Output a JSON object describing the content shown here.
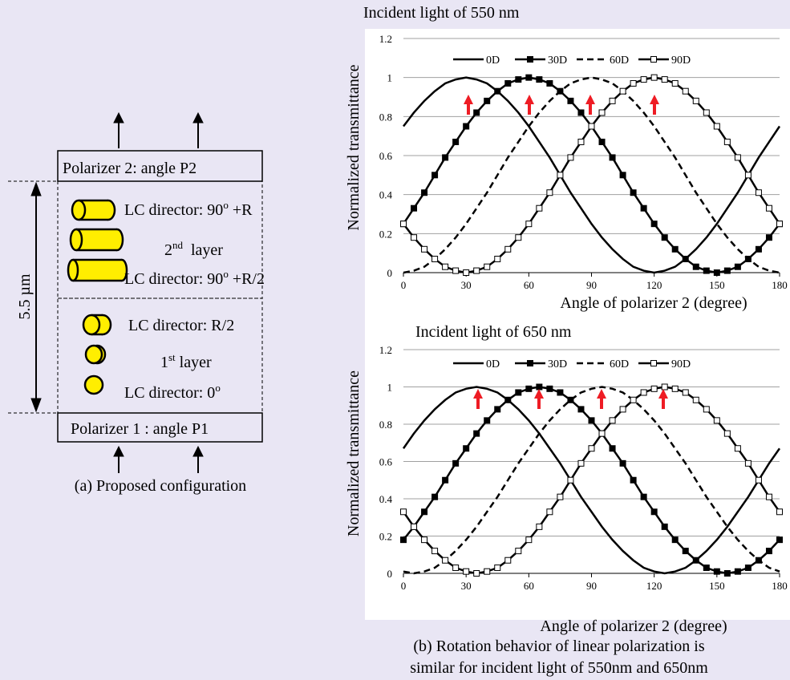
{
  "diagram": {
    "polarizer_top": "Polarizer 2: angle P2",
    "polarizer_bottom": "Polarizer 1 : angle P1",
    "thickness": "5.5 µm",
    "layer2": {
      "top": [
        "LC director: 90",
        "o",
        " +R"
      ],
      "name": [
        "2",
        "nd",
        "  layer"
      ],
      "bottom": [
        "LC director: 90",
        "o",
        " +R/2"
      ]
    },
    "layer1": {
      "top": [
        "LC director: R/2"
      ],
      "name": [
        "1",
        "st",
        " layer"
      ],
      "bottom": [
        "LC director: 0",
        "o"
      ]
    },
    "caption": "(a) Proposed configuration"
  },
  "chart_data": [
    {
      "type": "line",
      "title": "Incident light of 550 nm",
      "x_label": "Angle of polarizer 2 (degree)",
      "y_label": "Normalized transmittance",
      "x": [
        0,
        5,
        10,
        15,
        20,
        25,
        30,
        35,
        40,
        45,
        50,
        55,
        60,
        65,
        70,
        75,
        80,
        85,
        90,
        95,
        100,
        105,
        110,
        115,
        120,
        125,
        130,
        135,
        140,
        145,
        150,
        155,
        160,
        165,
        170,
        175,
        180
      ],
      "xlim": [
        0,
        180
      ],
      "xticks": [
        0,
        30,
        60,
        90,
        120,
        150,
        180
      ],
      "ylim": [
        0,
        1.2
      ],
      "yticks": [
        0,
        0.2,
        0.4,
        0.6,
        0.8,
        1,
        1.2
      ],
      "grid": true,
      "legend": "top",
      "series": [
        {
          "name": "0D",
          "color": "#000000",
          "line_style": "solid",
          "marker": "none",
          "values": [
            0.75,
            0.82,
            0.88,
            0.93,
            0.97,
            0.99,
            1,
            0.99,
            0.97,
            0.93,
            0.88,
            0.82,
            0.75,
            0.67,
            0.59,
            0.5,
            0.41,
            0.33,
            0.25,
            0.18,
            0.12,
            0.07,
            0.03,
            0.01,
            0,
            0.01,
            0.03,
            0.07,
            0.12,
            0.18,
            0.25,
            0.33,
            0.41,
            0.5,
            0.59,
            0.67,
            0.75
          ]
        },
        {
          "name": "30D",
          "color": "#000000",
          "line_style": "solid",
          "marker": "filled-square",
          "values": [
            0.25,
            0.33,
            0.41,
            0.5,
            0.59,
            0.67,
            0.75,
            0.82,
            0.88,
            0.93,
            0.97,
            0.99,
            1,
            0.99,
            0.97,
            0.93,
            0.88,
            0.82,
            0.75,
            0.67,
            0.59,
            0.5,
            0.41,
            0.33,
            0.25,
            0.18,
            0.12,
            0.07,
            0.03,
            0.01,
            0,
            0.01,
            0.03,
            0.07,
            0.12,
            0.18,
            0.25
          ]
        },
        {
          "name": "60D",
          "color": "#000000",
          "line_style": "dashed",
          "marker": "none",
          "values": [
            0,
            0.01,
            0.03,
            0.07,
            0.12,
            0.18,
            0.25,
            0.33,
            0.41,
            0.5,
            0.59,
            0.67,
            0.75,
            0.82,
            0.88,
            0.93,
            0.97,
            0.99,
            1,
            0.99,
            0.97,
            0.93,
            0.88,
            0.82,
            0.75,
            0.67,
            0.59,
            0.5,
            0.41,
            0.33,
            0.25,
            0.18,
            0.12,
            0.07,
            0.03,
            0.01,
            0
          ]
        },
        {
          "name": "90D",
          "color": "#000000",
          "line_style": "solid",
          "marker": "open-square",
          "values": [
            0.25,
            0.18,
            0.12,
            0.07,
            0.03,
            0.01,
            0,
            0.01,
            0.03,
            0.07,
            0.12,
            0.18,
            0.25,
            0.33,
            0.41,
            0.5,
            0.59,
            0.67,
            0.75,
            0.82,
            0.88,
            0.93,
            0.97,
            0.99,
            1,
            0.99,
            0.97,
            0.93,
            0.88,
            0.82,
            0.75,
            0.67,
            0.59,
            0.5,
            0.41,
            0.33,
            0.25
          ]
        }
      ]
    },
    {
      "type": "line",
      "title": "Incident light of 650 nm",
      "x_label": "Angle of polarizer 2 (degree)",
      "y_label": "Normalized transmittance",
      "x": [
        0,
        5,
        10,
        15,
        20,
        25,
        30,
        35,
        40,
        45,
        50,
        55,
        60,
        65,
        70,
        75,
        80,
        85,
        90,
        95,
        100,
        105,
        110,
        115,
        120,
        125,
        130,
        135,
        140,
        145,
        150,
        155,
        160,
        165,
        170,
        175,
        180
      ],
      "xlim": [
        0,
        180
      ],
      "xticks": [
        0,
        30,
        60,
        90,
        120,
        150,
        180
      ],
      "ylim": [
        0,
        1.2
      ],
      "yticks": [
        0,
        0.2,
        0.4,
        0.6,
        0.8,
        1,
        1.2
      ],
      "grid": true,
      "legend": "top",
      "series": [
        {
          "name": "0D",
          "color": "#000000",
          "line_style": "solid",
          "marker": "none",
          "values": [
            0.67,
            0.75,
            0.82,
            0.88,
            0.93,
            0.97,
            0.99,
            1,
            0.99,
            0.97,
            0.93,
            0.88,
            0.82,
            0.75,
            0.67,
            0.59,
            0.5,
            0.41,
            0.33,
            0.25,
            0.18,
            0.12,
            0.07,
            0.03,
            0.01,
            0,
            0.01,
            0.03,
            0.07,
            0.12,
            0.18,
            0.25,
            0.33,
            0.41,
            0.5,
            0.59,
            0.67
          ]
        },
        {
          "name": "30D",
          "color": "#000000",
          "line_style": "solid",
          "marker": "filled-square",
          "values": [
            0.18,
            0.25,
            0.33,
            0.41,
            0.5,
            0.59,
            0.67,
            0.75,
            0.82,
            0.88,
            0.93,
            0.97,
            0.99,
            1,
            0.99,
            0.97,
            0.93,
            0.88,
            0.82,
            0.75,
            0.67,
            0.59,
            0.5,
            0.41,
            0.33,
            0.25,
            0.18,
            0.12,
            0.07,
            0.03,
            0.01,
            0,
            0.01,
            0.03,
            0.07,
            0.12,
            0.18
          ]
        },
        {
          "name": "60D",
          "color": "#000000",
          "line_style": "dashed",
          "marker": "none",
          "values": [
            0.01,
            0,
            0.01,
            0.03,
            0.07,
            0.12,
            0.18,
            0.25,
            0.33,
            0.41,
            0.5,
            0.59,
            0.67,
            0.75,
            0.82,
            0.88,
            0.93,
            0.97,
            0.99,
            1,
            0.99,
            0.97,
            0.93,
            0.88,
            0.82,
            0.75,
            0.67,
            0.59,
            0.5,
            0.41,
            0.33,
            0.25,
            0.18,
            0.12,
            0.07,
            0.03,
            0.01
          ]
        },
        {
          "name": "90D",
          "color": "#000000",
          "line_style": "solid",
          "marker": "open-square",
          "values": [
            0.33,
            0.25,
            0.18,
            0.12,
            0.07,
            0.03,
            0.01,
            0,
            0.01,
            0.03,
            0.07,
            0.12,
            0.18,
            0.25,
            0.33,
            0.41,
            0.5,
            0.59,
            0.67,
            0.75,
            0.82,
            0.88,
            0.93,
            0.97,
            0.99,
            1,
            0.99,
            0.97,
            0.93,
            0.88,
            0.82,
            0.75,
            0.67,
            0.59,
            0.5,
            0.41,
            0.33
          ]
        }
      ]
    }
  ],
  "caption": [
    "(b) Rotation behavior of linear polarization is",
    "similar for incident light of 550nm and 650nm"
  ]
}
